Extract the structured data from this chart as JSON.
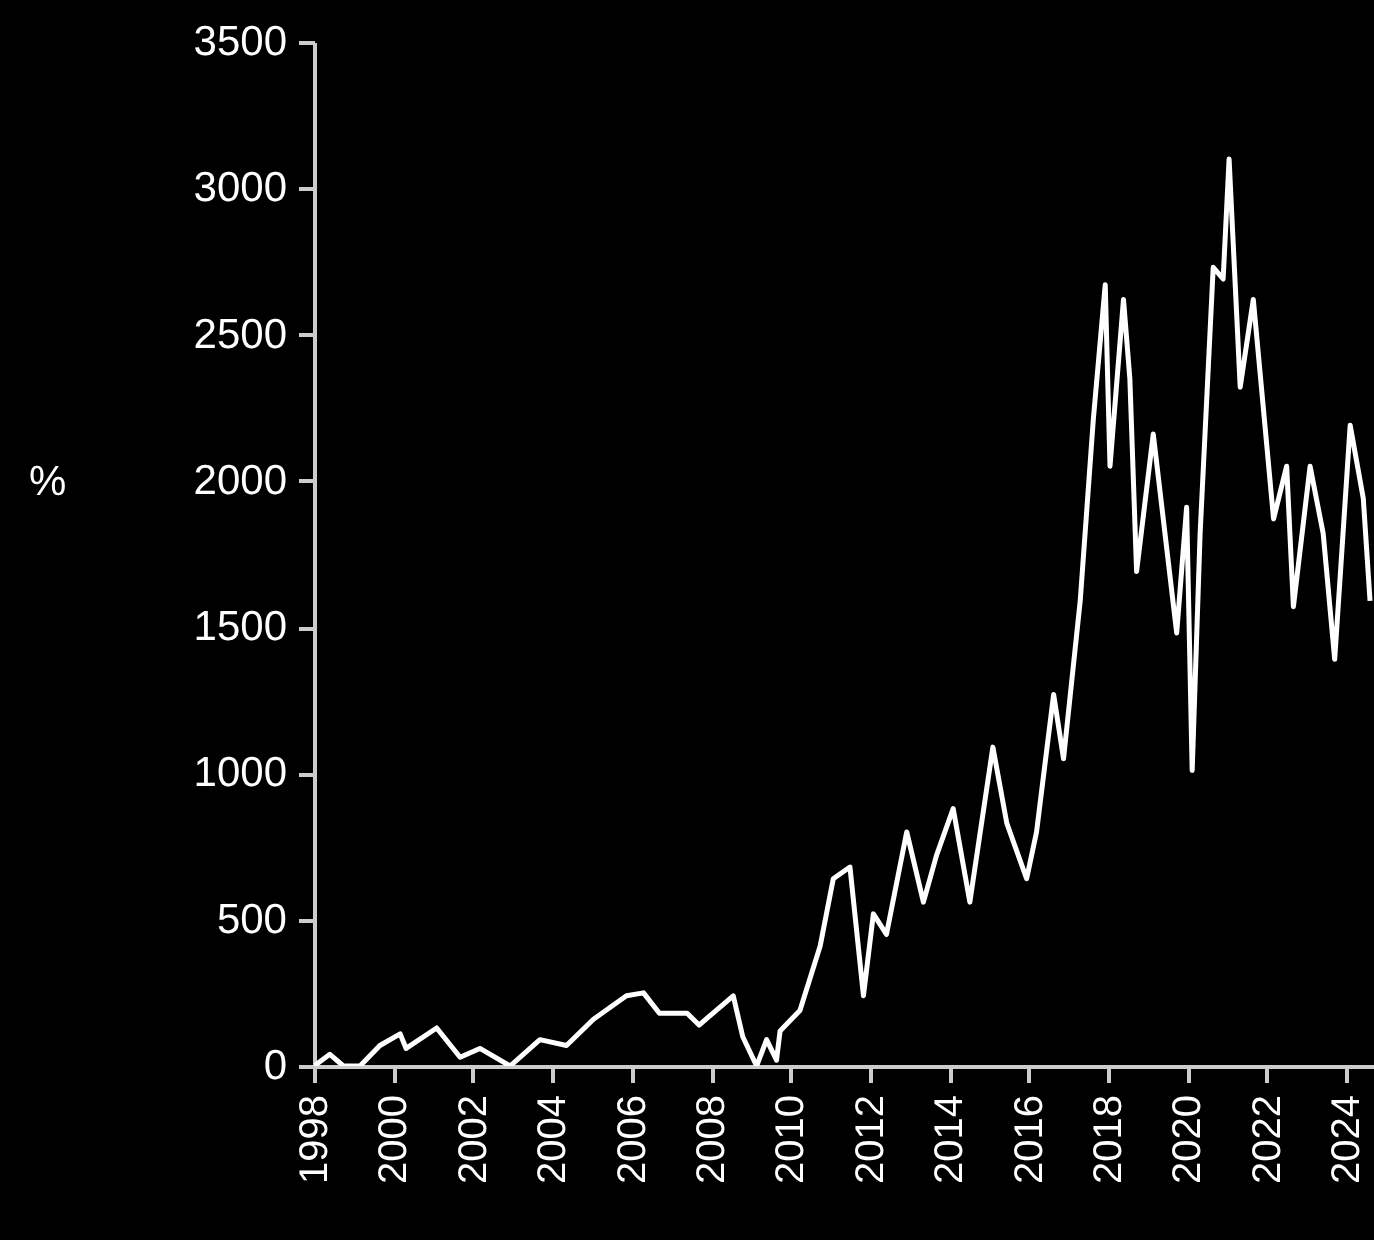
{
  "chart_data": {
    "type": "line",
    "ylabel": "%",
    "xlim": [
      1998,
      2024.7
    ],
    "xticks": [
      1998,
      2000,
      2002,
      2004,
      2006,
      2008,
      2010,
      2012,
      2014,
      2016,
      2018,
      2020,
      2022,
      2024
    ],
    "ylim": [
      0,
      3500
    ],
    "yticks": [
      0,
      500,
      1000,
      1500,
      2000,
      2500,
      3000,
      3500
    ],
    "grid": false,
    "marker": "none",
    "line_style": "solid",
    "series": [
      {
        "color": "#ffffff",
        "x": [
          1998.0,
          1998.4,
          1998.74,
          1999.16,
          1999.66,
          2000.17,
          2000.32,
          2001.09,
          2001.68,
          2002.18,
          2002.94,
          2003.69,
          2004.36,
          2005.04,
          2005.87,
          2006.3,
          2006.7,
          2007.4,
          2007.7,
          2008.56,
          2008.8,
          2009.15,
          2009.4,
          2009.65,
          2009.74,
          2010.24,
          2010.75,
          2011.08,
          2011.5,
          2011.84,
          2012.09,
          2012.42,
          2012.93,
          2013.35,
          2013.68,
          2014.1,
          2014.52,
          2015.1,
          2015.45,
          2015.95,
          2016.2,
          2016.63,
          2016.88,
          2017.3,
          2017.63,
          2017.93,
          2018.05,
          2018.39,
          2018.55,
          2018.72,
          2019.14,
          2019.73,
          2019.98,
          2020.12,
          2020.32,
          2020.65,
          2020.9,
          2021.05,
          2021.33,
          2021.66,
          2022.17,
          2022.5,
          2022.67,
          2023.09,
          2023.42,
          2023.71,
          2024.1,
          2024.43,
          2024.6
        ],
        "values": [
          0,
          40,
          0,
          0,
          70,
          110,
          60,
          130,
          30,
          60,
          0,
          90,
          70,
          160,
          240,
          250,
          180,
          180,
          140,
          240,
          100,
          0,
          90,
          20,
          120,
          190,
          410,
          640,
          680,
          240,
          520,
          450,
          800,
          560,
          720,
          880,
          560,
          1090,
          830,
          640,
          800,
          1270,
          1050,
          1590,
          2210,
          2670,
          2050,
          2620,
          2350,
          1690,
          2160,
          1480,
          1910,
          1010,
          1820,
          2730,
          2690,
          3100,
          2320,
          2620,
          1870,
          2050,
          1570,
          2050,
          1820,
          1390,
          2190,
          1940,
          1590
        ]
      }
    ]
  }
}
